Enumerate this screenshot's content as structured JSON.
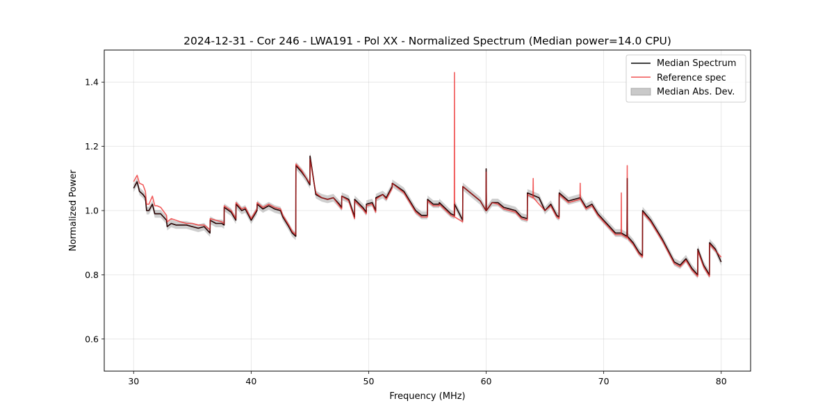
{
  "chart_data": {
    "type": "line",
    "title": "2024-12-31 - Cor 246 - LWA191 - Pol XX - Normalized Spectrum (Median power=14.0 CPU)",
    "xlabel": "Frequency (MHz)",
    "ylabel": "Normalized Power",
    "xlim": [
      27.5,
      82.5
    ],
    "ylim": [
      0.5,
      1.5
    ],
    "xticks": [
      30,
      40,
      50,
      60,
      70,
      80
    ],
    "xtick_labels": [
      "30",
      "40",
      "50",
      "60",
      "70",
      "80"
    ],
    "yticks": [
      0.6,
      0.8,
      1.0,
      1.2,
      1.4
    ],
    "ytick_labels": [
      "0.6",
      "0.8",
      "1.0",
      "1.2",
      "1.4"
    ],
    "grid": true,
    "legend_position": "top-right",
    "series": [
      {
        "name": "Median Spectrum",
        "color": "#000000",
        "x": [
          30.0,
          30.3,
          30.5,
          30.8,
          31.0,
          31.1,
          31.3,
          31.6,
          31.8,
          32.0,
          32.3,
          32.8,
          32.85,
          33.2,
          33.6,
          34.0,
          34.5,
          35.0,
          35.5,
          36.0,
          36.5,
          36.51,
          37.0,
          37.5,
          37.7,
          37.71,
          38.3,
          38.7,
          38.71,
          39.2,
          39.5,
          40.0,
          40.5,
          40.51,
          41.0,
          41.5,
          42.0,
          42.5,
          42.7,
          43.2,
          43.5,
          43.8,
          43.81,
          44.3,
          44.7,
          45.0,
          45.01,
          45.5,
          46.0,
          46.5,
          47.0,
          47.5,
          47.7,
          47.71,
          48.3,
          48.8,
          48.81,
          49.5,
          49.8,
          49.81,
          50.3,
          50.6,
          50.61,
          51.2,
          51.5,
          52.0,
          52.01,
          53.0,
          54.0,
          54.5,
          55.0,
          55.01,
          55.5,
          56.0,
          56.01,
          57.0,
          57.3,
          57.31,
          58.0,
          58.01,
          58.5,
          59.5,
          59.98,
          60.0,
          60.02,
          60.5,
          61.0,
          61.5,
          62.0,
          62.5,
          63.0,
          63.5,
          63.51,
          64.5,
          65.0,
          65.5,
          66.0,
          66.2,
          66.21,
          67.0,
          68.0,
          68.5,
          69.0,
          69.5,
          70.0,
          70.5,
          71.0,
          71.5,
          71.98,
          72.0,
          72.02,
          72.5,
          73.0,
          73.3,
          73.31,
          74.0,
          75.0,
          76.0,
          76.5,
          77.0,
          77.5,
          78.0,
          78.01,
          78.5,
          79.0,
          79.01,
          79.5,
          80.0
        ],
        "y": [
          1.07,
          1.09,
          1.06,
          1.05,
          1.04,
          1.0,
          1.0,
          1.02,
          0.99,
          0.99,
          0.99,
          0.97,
          0.95,
          0.96,
          0.955,
          0.955,
          0.955,
          0.95,
          0.945,
          0.95,
          0.93,
          0.97,
          0.96,
          0.96,
          0.955,
          1.01,
          0.995,
          0.97,
          1.02,
          1.0,
          1.005,
          0.97,
          1.0,
          1.02,
          1.005,
          1.015,
          1.005,
          1.0,
          0.98,
          0.95,
          0.93,
          0.92,
          1.14,
          1.12,
          1.1,
          1.08,
          1.17,
          1.05,
          1.04,
          1.035,
          1.04,
          1.02,
          1.01,
          1.045,
          1.035,
          0.98,
          1.035,
          1.01,
          0.995,
          1.02,
          1.025,
          1.0,
          1.04,
          1.05,
          1.04,
          1.075,
          1.085,
          1.06,
          1.0,
          0.985,
          0.985,
          1.035,
          1.02,
          1.02,
          1.025,
          0.99,
          0.985,
          1.02,
          0.97,
          1.075,
          1.06,
          1.03,
          1.0,
          1.13,
          1.0,
          1.025,
          1.025,
          1.01,
          1.005,
          1.0,
          0.98,
          0.975,
          1.055,
          1.04,
          1.0,
          1.02,
          0.985,
          0.98,
          1.055,
          1.03,
          1.04,
          1.01,
          1.02,
          0.99,
          0.97,
          0.95,
          0.93,
          0.93,
          0.92,
          1.1,
          0.92,
          0.9,
          0.87,
          0.86,
          1.0,
          0.97,
          0.91,
          0.84,
          0.83,
          0.85,
          0.82,
          0.8,
          0.88,
          0.83,
          0.8,
          0.9,
          0.88,
          0.84
        ]
      },
      {
        "name": "Reference spec",
        "color": "#ee3333",
        "x": [
          30.0,
          30.3,
          30.5,
          30.8,
          31.0,
          31.1,
          31.3,
          31.6,
          31.8,
          32.0,
          32.3,
          32.8,
          32.85,
          33.2,
          33.6,
          34.0,
          34.5,
          35.0,
          35.5,
          36.0,
          36.5,
          36.51,
          37.0,
          37.5,
          37.7,
          37.71,
          38.3,
          38.7,
          38.71,
          39.2,
          39.5,
          40.0,
          40.5,
          40.51,
          41.0,
          41.5,
          42.0,
          42.5,
          42.7,
          43.2,
          43.5,
          43.8,
          43.81,
          44.3,
          44.7,
          45.0,
          45.01,
          45.5,
          46.0,
          46.5,
          47.0,
          47.5,
          47.7,
          47.71,
          48.3,
          48.8,
          48.81,
          49.5,
          49.8,
          49.81,
          50.3,
          50.6,
          50.61,
          51.2,
          51.5,
          52.0,
          52.01,
          53.0,
          54.0,
          54.5,
          55.0,
          55.01,
          55.5,
          56.0,
          56.01,
          57.0,
          57.28,
          57.3,
          57.32,
          58.0,
          58.01,
          58.5,
          59.5,
          59.98,
          60.0,
          60.02,
          60.5,
          61.0,
          61.5,
          62.0,
          62.5,
          63.0,
          63.5,
          63.51,
          63.98,
          64.0,
          64.02,
          64.5,
          65.0,
          65.5,
          66.0,
          66.2,
          66.21,
          67.0,
          67.98,
          68.0,
          68.02,
          68.5,
          69.0,
          69.5,
          70.0,
          70.5,
          71.0,
          71.48,
          71.5,
          71.52,
          71.98,
          72.0,
          72.02,
          72.5,
          73.0,
          73.3,
          73.31,
          74.0,
          75.0,
          76.0,
          76.5,
          77.0,
          77.5,
          78.0,
          78.01,
          78.5,
          79.0,
          79.01,
          79.5,
          80.0
        ],
        "y": [
          1.09,
          1.11,
          1.085,
          1.08,
          1.06,
          1.02,
          1.02,
          1.045,
          1.015,
          1.015,
          1.01,
          0.985,
          0.965,
          0.975,
          0.97,
          0.965,
          0.96,
          0.96,
          0.955,
          0.955,
          0.94,
          0.975,
          0.97,
          0.965,
          0.96,
          1.015,
          1.0,
          0.975,
          1.025,
          1.005,
          1.01,
          0.975,
          1.005,
          1.025,
          1.01,
          1.02,
          1.01,
          1.005,
          0.985,
          0.955,
          0.935,
          0.925,
          1.145,
          1.125,
          1.1,
          1.085,
          1.16,
          1.055,
          1.04,
          1.035,
          1.04,
          1.015,
          1.005,
          1.045,
          1.03,
          0.975,
          1.03,
          1.005,
          0.99,
          1.015,
          1.02,
          0.995,
          1.035,
          1.05,
          1.035,
          1.07,
          1.085,
          1.055,
          0.995,
          0.98,
          0.98,
          1.03,
          1.015,
          1.015,
          1.02,
          0.985,
          0.98,
          1.43,
          0.98,
          0.965,
          1.075,
          1.06,
          1.03,
          1.0,
          1.12,
          1.0,
          1.025,
          1.02,
          1.005,
          1.0,
          0.995,
          0.975,
          0.97,
          1.05,
          1.04,
          1.1,
          1.04,
          1.02,
          1.0,
          1.015,
          0.98,
          0.975,
          1.05,
          1.025,
          1.035,
          1.085,
          1.035,
          1.005,
          1.015,
          0.985,
          0.965,
          0.945,
          0.925,
          0.925,
          1.055,
          0.925,
          0.915,
          1.14,
          0.915,
          0.895,
          0.865,
          0.855,
          0.995,
          0.965,
          0.905,
          0.835,
          0.825,
          0.845,
          0.815,
          0.795,
          0.875,
          0.825,
          0.795,
          0.895,
          0.875,
          0.855
        ]
      }
    ],
    "band": {
      "name": "Median Abs. Dev.",
      "color": "#888888",
      "width": 0.012
    }
  }
}
